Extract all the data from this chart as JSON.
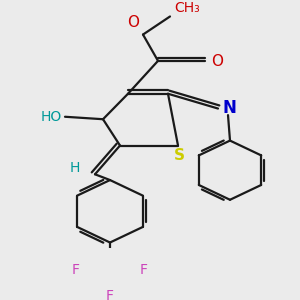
{
  "bg_color": "#ebebeb",
  "line_color": "#1a1a1a",
  "line_width": 1.6,
  "figsize": [
    3.0,
    3.0
  ],
  "dpi": 100,
  "colors": {
    "S": "#cccc00",
    "N": "#0000cc",
    "O": "#cc0000",
    "HO": "#009999",
    "H": "#009999",
    "F": "#cc44bb",
    "C": "#1a1a1a"
  }
}
